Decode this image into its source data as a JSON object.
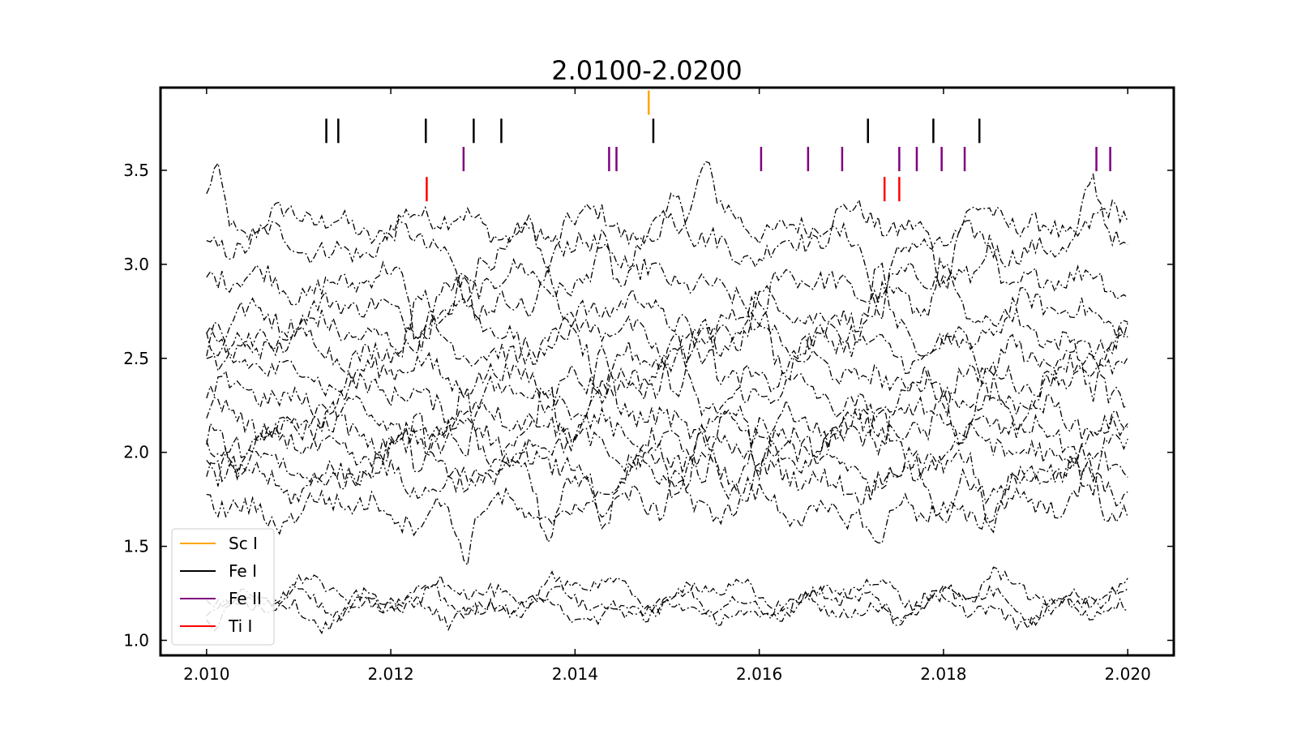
{
  "chart_data": {
    "type": "line",
    "title": "2.0100-2.0200",
    "xlabel": "",
    "ylabel": "",
    "xlim": [
      2.0095,
      2.0205
    ],
    "ylim": [
      0.92,
      3.94
    ],
    "xticks": [
      2.01,
      2.012,
      2.014,
      2.016,
      2.018,
      2.02
    ],
    "xtick_labels": [
      "2.010",
      "2.012",
      "2.014",
      "2.016",
      "2.018",
      "2.020"
    ],
    "yticks": [
      1.0,
      1.5,
      2.0,
      2.5,
      3.0,
      3.5
    ],
    "ytick_labels": [
      "1.0",
      "1.5",
      "2.0",
      "2.5",
      "3.0",
      "3.5"
    ],
    "grid": false,
    "legend_position": "lower-left",
    "line_style": "dash-dot",
    "line_color": "#000000",
    "series_levels": [
      3.22,
      3.1,
      2.9,
      2.75,
      2.63,
      2.55,
      2.42,
      2.3,
      2.18,
      2.1,
      2.02,
      1.92,
      1.85,
      1.7,
      1.25,
      1.2,
      1.16
    ],
    "legend": [
      {
        "label": "Sc I",
        "color": "#ffa500"
      },
      {
        "label": "Fe I",
        "color": "#000000"
      },
      {
        "label": "Fe II",
        "color": "#800080"
      },
      {
        "label": "Ti I",
        "color": "#ff0000"
      }
    ],
    "line_markers": [
      {
        "species": "Sc I",
        "color": "#ffa500",
        "level": 3.86,
        "x": [
          2.0148
        ]
      },
      {
        "species": "Fe I",
        "color": "#000000",
        "level": 3.71,
        "x": [
          2.0113,
          2.01143,
          2.01238,
          2.0129,
          2.0132,
          2.01485,
          2.01718,
          2.01789,
          2.01839
        ]
      },
      {
        "species": "Fe II",
        "color": "#800080",
        "level": 3.56,
        "x": [
          2.01279,
          2.01437,
          2.01445,
          2.01602,
          2.01653,
          2.0169,
          2.01752,
          2.01771,
          2.01798,
          2.01823,
          2.01966,
          2.01981
        ]
      },
      {
        "species": "Ti I",
        "color": "#ff0000",
        "level": 3.4,
        "x": [
          2.01239,
          2.01736,
          2.01752
        ]
      }
    ]
  }
}
